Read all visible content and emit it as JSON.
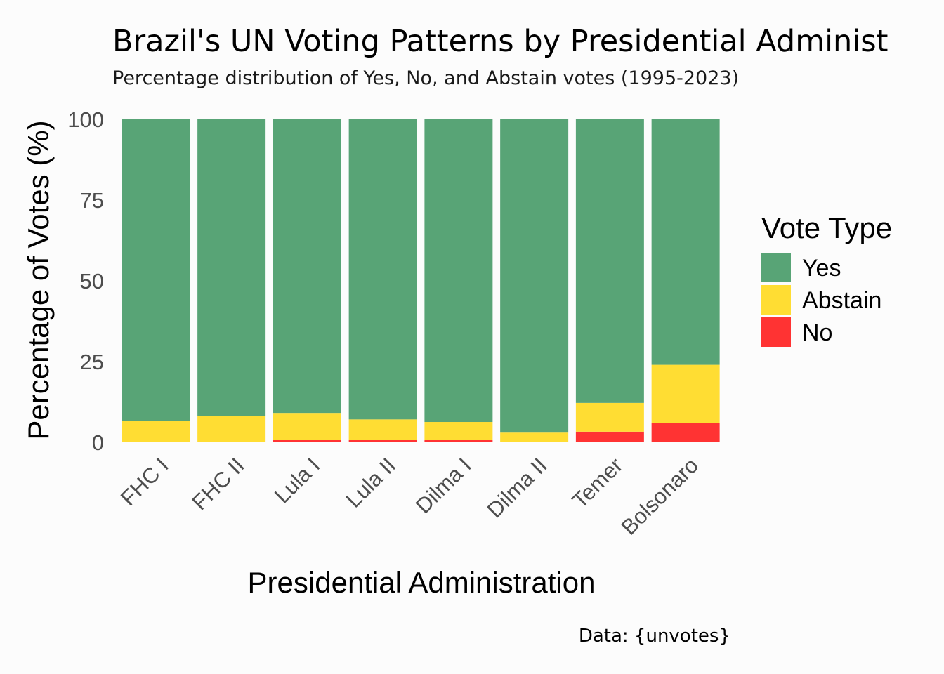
{
  "chart_data": {
    "type": "bar",
    "stacked": true,
    "title": "Brazil's UN Voting Patterns by Presidential Administ",
    "subtitle": "Percentage distribution of Yes, No, and Abstain votes (1995-2023)",
    "caption": "Data: {unvotes}",
    "xlabel": "Presidential Administration",
    "ylabel": "Percentage of Votes (%)",
    "ylim": [
      0,
      100
    ],
    "yticks": [
      "0",
      "25",
      "50",
      "75",
      "100"
    ],
    "categories": [
      "FHC I",
      "FHC II",
      "Lula I",
      "Lula II",
      "Dilma I",
      "Dilma II",
      "Temer",
      "Bolsonaro"
    ],
    "series": [
      {
        "name": "No",
        "color": "#ff3333",
        "values": [
          0,
          0,
          0.7,
          0.7,
          0.7,
          0,
          3.3,
          5.9
        ]
      },
      {
        "name": "Abstain",
        "color": "#ffdd33",
        "values": [
          6.7,
          8.2,
          8.4,
          6.4,
          5.6,
          3.0,
          8.9,
          18.1
        ]
      },
      {
        "name": "Yes",
        "color": "#58a476",
        "values": [
          93.3,
          91.8,
          90.9,
          92.9,
          93.7,
          97.0,
          87.8,
          76.0
        ]
      }
    ],
    "legend": {
      "title": "Vote Type",
      "placement": "right",
      "items": [
        {
          "label": "Yes",
          "color": "#58a476"
        },
        {
          "label": "Abstain",
          "color": "#ffdd33"
        },
        {
          "label": "No",
          "color": "#ff3333"
        }
      ]
    },
    "grid": false
  }
}
